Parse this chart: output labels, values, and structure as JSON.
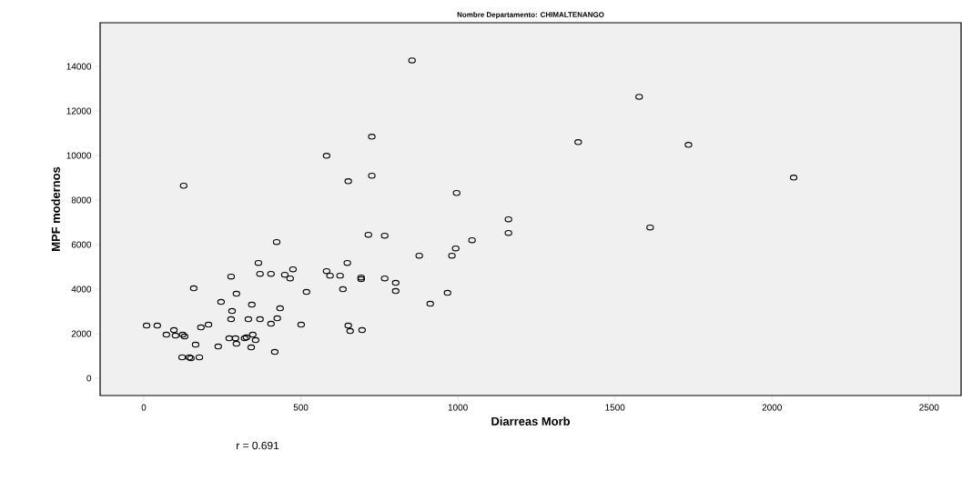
{
  "chart_data": {
    "type": "scatter",
    "title": "Nombre Departamento: CHIMALTENANGO",
    "xlabel": "Diarreas Morb",
    "ylabel": "MPF modernos",
    "annotations": [
      "r = 0.691"
    ],
    "x": [
      423,
      365,
      370,
      405,
      449,
      475,
      466,
      278,
      159,
      295,
      246,
      518,
      344,
      434,
      281,
      278,
      333,
      370,
      425,
      405,
      501,
      9,
      43,
      96,
      72,
      101,
      124,
      130,
      182,
      206,
      165,
      237,
      122,
      145,
      150,
      177,
      272,
      292,
      295,
      321,
      327,
      347,
      356,
      342,
      417,
      1161,
      1161,
      715,
      767,
      1045,
      993,
      981,
      877,
      648,
      582,
      593,
      625,
      692,
      692,
      767,
      802,
      802,
      634,
      967,
      912,
      651,
      657,
      695,
      854,
      726,
      582,
      726,
      651,
      127,
      996,
      1577,
      1383,
      1734,
      2069,
      1612
    ],
    "values": [
      6115,
      5177,
      4688,
      4688,
      4647,
      4892,
      4484,
      4566,
      4036,
      3791,
      3424,
      3873,
      3302,
      3139,
      3017,
      2650,
      2650,
      2650,
      2691,
      2446,
      2405,
      2365,
      2365,
      2161,
      1957,
      1916,
      1957,
      1875,
      2283,
      2405,
      1508,
      1427,
      938,
      938,
      897,
      938,
      1794,
      1794,
      1549,
      1794,
      1835,
      1957,
      1712,
      1386,
      1182,
      7134,
      6523,
      6441,
      6400,
      6196,
      5830,
      5503,
      5503,
      5177,
      4810,
      4607,
      4607,
      4525,
      4444,
      4484,
      4281,
      3914,
      3995,
      3832,
      3343,
      2365,
      2120,
      2161,
      14268,
      10844,
      9988,
      9091,
      8846,
      8642,
      8316,
      12637,
      10600,
      10477,
      9009,
      6767
    ],
    "color": "#000000",
    "marker": "circle",
    "xlim": [
      -139,
      2602
    ],
    "ylim": [
      -776,
      15960
    ],
    "xticks": [
      0,
      500,
      1000,
      1500,
      2000,
      2500
    ],
    "yticks": [
      0,
      2000,
      4000,
      6000,
      8000,
      10000,
      12000,
      14000
    ],
    "grid": false
  }
}
